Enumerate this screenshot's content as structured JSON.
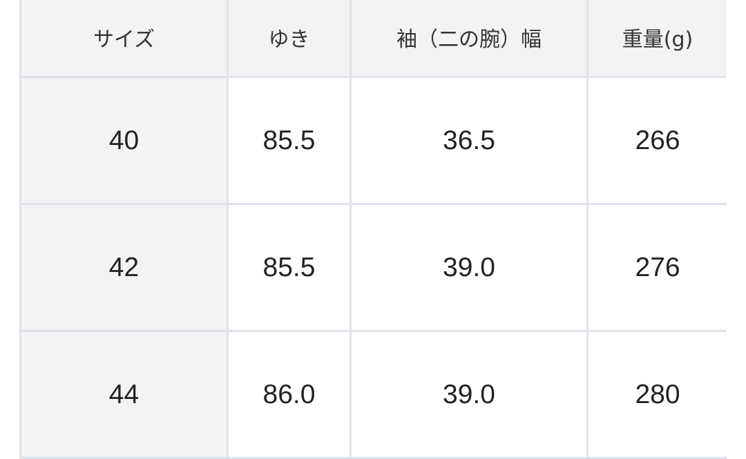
{
  "table": {
    "headers": [
      "サイズ",
      "ゆき",
      "袖（二の腕）幅",
      "重量(g)"
    ],
    "rows": [
      [
        "40",
        "85.5",
        "36.5",
        "266"
      ],
      [
        "42",
        "85.5",
        "39.0",
        "276"
      ],
      [
        "44",
        "86.0",
        "39.0",
        "280"
      ]
    ]
  },
  "colors": {
    "border": "#dde3ea",
    "header_bg": "#f3f3f3",
    "text": "#222222"
  }
}
